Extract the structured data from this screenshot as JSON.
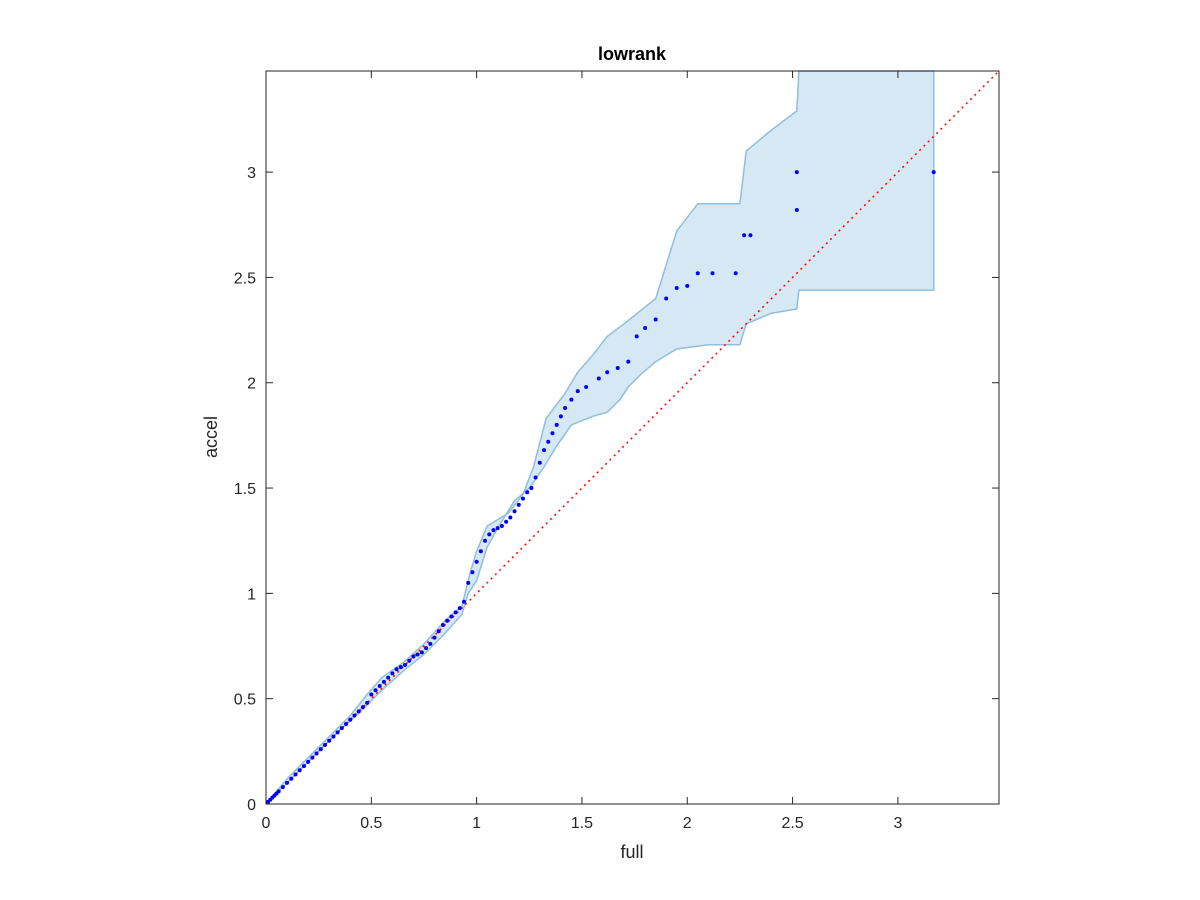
{
  "chart_data": {
    "type": "scatter",
    "title": "lowrank",
    "xlabel": "full",
    "ylabel": "accel",
    "xlim": [
      0,
      3.48
    ],
    "ylim": [
      0,
      3.48
    ],
    "xticks": [
      0,
      0.5,
      1,
      1.5,
      2,
      2.5,
      3
    ],
    "yticks": [
      0,
      0.5,
      1,
      1.5,
      2,
      2.5,
      3
    ],
    "xtick_labels": [
      "0",
      "0.5",
      "1",
      "1.5",
      "2",
      "2.5",
      "3"
    ],
    "ytick_labels": [
      "0",
      "0.5",
      "1",
      "1.5",
      "2",
      "2.5",
      "3"
    ],
    "grid": false,
    "colors": {
      "points": "#0000ff",
      "band_fill": "#d6e8f4",
      "band_edge": "#8fbfdc",
      "reference_line": "#ff0000",
      "axes": "#262626"
    },
    "reference_line": {
      "style": "dotted",
      "from": [
        0,
        0
      ],
      "to": [
        3.48,
        3.48
      ]
    },
    "band": {
      "upper": [
        [
          0,
          0
        ],
        [
          0.05,
          0.06
        ],
        [
          0.1,
          0.12
        ],
        [
          0.2,
          0.22
        ],
        [
          0.3,
          0.32
        ],
        [
          0.4,
          0.42
        ],
        [
          0.48,
          0.52
        ],
        [
          0.55,
          0.6
        ],
        [
          0.65,
          0.67
        ],
        [
          0.75,
          0.76
        ],
        [
          0.85,
          0.87
        ],
        [
          0.93,
          0.94
        ],
        [
          0.97,
          1.1
        ],
        [
          1.0,
          1.2
        ],
        [
          1.05,
          1.32
        ],
        [
          1.15,
          1.38
        ],
        [
          1.22,
          1.47
        ],
        [
          1.27,
          1.6
        ],
        [
          1.33,
          1.83
        ],
        [
          1.42,
          1.95
        ],
        [
          1.48,
          2.05
        ],
        [
          1.55,
          2.13
        ],
        [
          1.62,
          2.22
        ],
        [
          1.7,
          2.28
        ],
        [
          1.85,
          2.4
        ],
        [
          1.95,
          2.72
        ],
        [
          2.05,
          2.85
        ],
        [
          2.25,
          2.85
        ],
        [
          2.28,
          3.1
        ],
        [
          2.4,
          3.2
        ],
        [
          2.52,
          3.29
        ],
        [
          2.53,
          3.48
        ],
        [
          3.17,
          3.48
        ]
      ],
      "lower": [
        [
          3.17,
          2.44
        ],
        [
          2.53,
          2.44
        ],
        [
          2.52,
          2.35
        ],
        [
          2.4,
          2.33
        ],
        [
          2.28,
          2.28
        ],
        [
          2.25,
          2.18
        ],
        [
          2.1,
          2.18
        ],
        [
          1.95,
          2.16
        ],
        [
          1.85,
          2.1
        ],
        [
          1.78,
          2.04
        ],
        [
          1.72,
          1.98
        ],
        [
          1.68,
          1.92
        ],
        [
          1.62,
          1.86
        ],
        [
          1.55,
          1.84
        ],
        [
          1.45,
          1.8
        ],
        [
          1.38,
          1.7
        ],
        [
          1.32,
          1.6
        ],
        [
          1.25,
          1.5
        ],
        [
          1.18,
          1.44
        ],
        [
          1.1,
          1.31
        ],
        [
          1.05,
          1.22
        ],
        [
          1.0,
          1.06
        ],
        [
          0.96,
          1.0
        ],
        [
          0.93,
          0.9
        ],
        [
          0.85,
          0.81
        ],
        [
          0.75,
          0.71
        ],
        [
          0.65,
          0.63
        ],
        [
          0.55,
          0.54
        ],
        [
          0.45,
          0.44
        ],
        [
          0.35,
          0.35
        ],
        [
          0.25,
          0.25
        ],
        [
          0.15,
          0.15
        ],
        [
          0.07,
          0.07
        ],
        [
          0,
          0
        ]
      ]
    },
    "series": [
      {
        "points": [
          [
            0.01,
            0.01
          ],
          [
            0.02,
            0.02
          ],
          [
            0.03,
            0.03
          ],
          [
            0.04,
            0.04
          ],
          [
            0.05,
            0.05
          ],
          [
            0.06,
            0.06
          ],
          [
            0.08,
            0.08
          ],
          [
            0.1,
            0.1
          ],
          [
            0.12,
            0.12
          ],
          [
            0.14,
            0.14
          ],
          [
            0.16,
            0.16
          ],
          [
            0.18,
            0.18
          ],
          [
            0.2,
            0.2
          ],
          [
            0.22,
            0.22
          ],
          [
            0.24,
            0.24
          ],
          [
            0.26,
            0.26
          ],
          [
            0.28,
            0.28
          ],
          [
            0.3,
            0.3
          ],
          [
            0.32,
            0.32
          ],
          [
            0.34,
            0.34
          ],
          [
            0.36,
            0.36
          ],
          [
            0.38,
            0.38
          ],
          [
            0.4,
            0.4
          ],
          [
            0.42,
            0.42
          ],
          [
            0.44,
            0.44
          ],
          [
            0.46,
            0.46
          ],
          [
            0.48,
            0.48
          ],
          [
            0.5,
            0.52
          ],
          [
            0.52,
            0.54
          ],
          [
            0.54,
            0.56
          ],
          [
            0.56,
            0.58
          ],
          [
            0.58,
            0.6
          ],
          [
            0.6,
            0.62
          ],
          [
            0.62,
            0.64
          ],
          [
            0.64,
            0.65
          ],
          [
            0.66,
            0.66
          ],
          [
            0.68,
            0.68
          ],
          [
            0.7,
            0.7
          ],
          [
            0.72,
            0.71
          ],
          [
            0.74,
            0.72
          ],
          [
            0.76,
            0.74
          ],
          [
            0.78,
            0.76
          ],
          [
            0.8,
            0.79
          ],
          [
            0.82,
            0.82
          ],
          [
            0.84,
            0.85
          ],
          [
            0.86,
            0.87
          ],
          [
            0.88,
            0.89
          ],
          [
            0.9,
            0.91
          ],
          [
            0.92,
            0.93
          ],
          [
            0.94,
            0.96
          ],
          [
            0.96,
            1.05
          ],
          [
            0.98,
            1.1
          ],
          [
            1.0,
            1.15
          ],
          [
            1.02,
            1.2
          ],
          [
            1.04,
            1.25
          ],
          [
            1.06,
            1.28
          ],
          [
            1.08,
            1.3
          ],
          [
            1.1,
            1.31
          ],
          [
            1.12,
            1.32
          ],
          [
            1.14,
            1.34
          ],
          [
            1.16,
            1.36
          ],
          [
            1.18,
            1.39
          ],
          [
            1.2,
            1.42
          ],
          [
            1.22,
            1.45
          ],
          [
            1.24,
            1.48
          ],
          [
            1.26,
            1.5
          ],
          [
            1.28,
            1.55
          ],
          [
            1.3,
            1.62
          ],
          [
            1.32,
            1.68
          ],
          [
            1.34,
            1.72
          ],
          [
            1.36,
            1.76
          ],
          [
            1.38,
            1.8
          ],
          [
            1.4,
            1.84
          ],
          [
            1.42,
            1.88
          ],
          [
            1.45,
            1.92
          ],
          [
            1.48,
            1.96
          ],
          [
            1.52,
            1.98
          ],
          [
            1.58,
            2.02
          ],
          [
            1.62,
            2.05
          ],
          [
            1.67,
            2.07
          ],
          [
            1.72,
            2.1
          ],
          [
            1.76,
            2.22
          ],
          [
            1.8,
            2.26
          ],
          [
            1.85,
            2.3
          ],
          [
            1.9,
            2.4
          ],
          [
            1.95,
            2.45
          ],
          [
            2.0,
            2.46
          ],
          [
            2.05,
            2.52
          ],
          [
            2.12,
            2.52
          ],
          [
            2.23,
            2.52
          ],
          [
            2.27,
            2.7
          ],
          [
            2.3,
            2.7
          ],
          [
            2.52,
            2.82
          ],
          [
            2.52,
            3.0
          ],
          [
            3.17,
            3.0
          ]
        ]
      }
    ]
  }
}
